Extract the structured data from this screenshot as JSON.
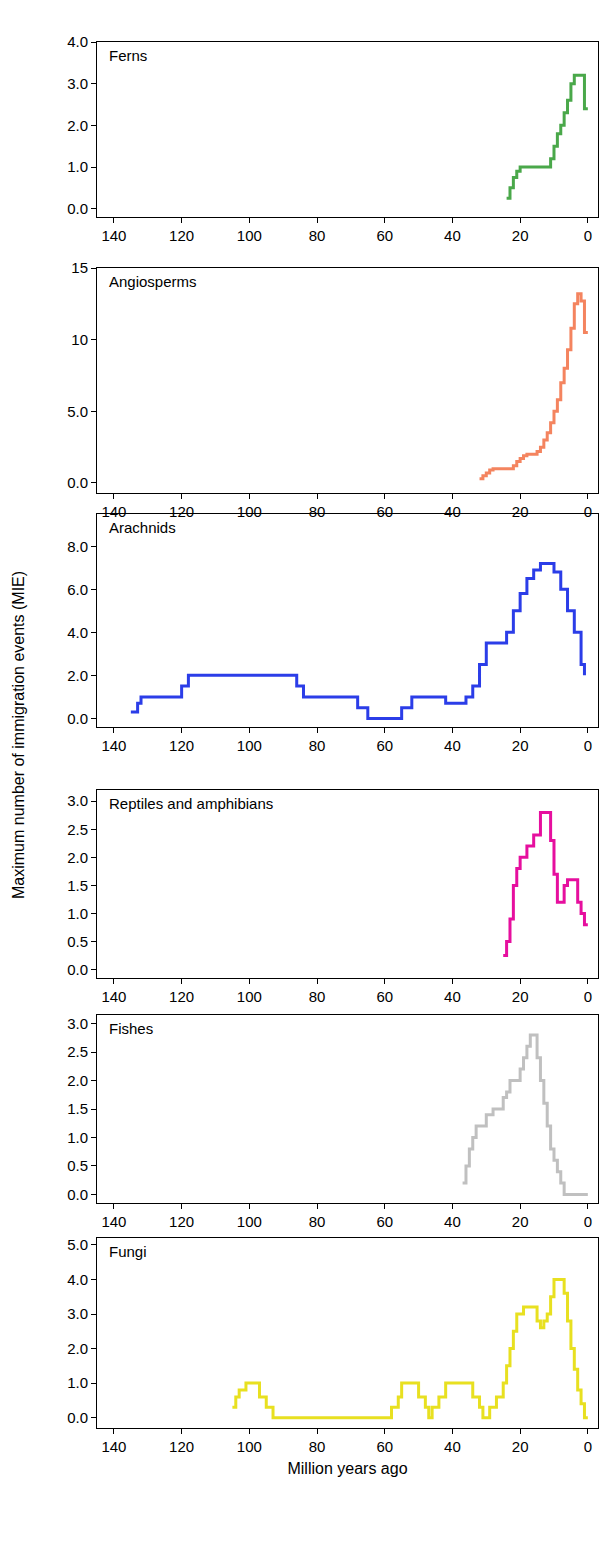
{
  "chart_data": [
    {
      "type": "line",
      "title": "Ferns",
      "color": "#4aa84a",
      "line_style": "step",
      "x": [
        24,
        23,
        22,
        21,
        20,
        12,
        11,
        10,
        9,
        8,
        7,
        6,
        5,
        4,
        2,
        1,
        0
      ],
      "values": [
        0.25,
        0.5,
        0.75,
        0.9,
        1.0,
        1.0,
        1.2,
        1.5,
        1.8,
        2.0,
        2.3,
        2.6,
        3.0,
        3.2,
        3.2,
        2.4,
        2.4
      ],
      "xlim": [
        145,
        -3
      ],
      "xticks": [
        140,
        120,
        100,
        80,
        60,
        40,
        20,
        0
      ],
      "ylim": [
        -0.2,
        4.0
      ],
      "yticks": [
        {
          "value": 0,
          "label": "0.0"
        },
        {
          "value": 1,
          "label": "1.0"
        },
        {
          "value": 2,
          "label": "2.0"
        },
        {
          "value": 3,
          "label": "3.0"
        },
        {
          "value": 4,
          "label": "4.0"
        }
      ]
    },
    {
      "type": "line",
      "title": "Angiosperms",
      "color": "#f4845f",
      "line_style": "step",
      "x": [
        32,
        31,
        30,
        29,
        28,
        23,
        22,
        21,
        20,
        19,
        18,
        16,
        15,
        14,
        13,
        12,
        11,
        10,
        9,
        8,
        7,
        6,
        5,
        4,
        3,
        2,
        1,
        0
      ],
      "values": [
        0.3,
        0.5,
        0.7,
        0.9,
        1.0,
        1.0,
        1.2,
        1.5,
        1.7,
        1.9,
        2.0,
        2.0,
        2.2,
        2.5,
        3.0,
        3.5,
        4.2,
        5.0,
        5.8,
        7.0,
        8.0,
        9.3,
        10.8,
        12.5,
        13.2,
        12.7,
        10.5,
        10.5
      ],
      "xlim": [
        145,
        -3
      ],
      "xticks": [
        140,
        120,
        100,
        80,
        60,
        40,
        20,
        0
      ],
      "ylim": [
        -0.7,
        15
      ],
      "yticks": [
        {
          "value": 0,
          "label": "0.0"
        },
        {
          "value": 5,
          "label": "5.0"
        },
        10,
        15
      ]
    },
    {
      "type": "line",
      "title": "Arachnids",
      "color": "#2b3de8",
      "line_style": "step",
      "x": [
        135,
        133,
        132,
        123,
        120,
        118,
        88,
        86,
        84,
        70,
        68,
        65,
        58,
        55,
        52,
        43,
        42,
        38,
        36,
        34,
        32,
        30,
        26,
        24,
        22,
        20,
        18,
        16,
        14,
        12,
        10,
        8,
        6,
        4,
        2,
        1
      ],
      "values": [
        0.3,
        0.7,
        1.0,
        1.0,
        1.5,
        2.0,
        2.0,
        1.5,
        1.0,
        1.0,
        0.5,
        0.0,
        0.0,
        0.5,
        1.0,
        1.0,
        0.7,
        0.7,
        1.0,
        1.5,
        2.5,
        3.5,
        3.5,
        4.0,
        5.0,
        5.8,
        6.5,
        6.9,
        7.2,
        7.2,
        6.8,
        6.0,
        5.0,
        4.0,
        2.5,
        2.0
      ],
      "xlim": [
        145,
        -3
      ],
      "xticks": [
        140,
        120,
        100,
        80,
        60,
        40,
        20,
        0
      ],
      "ylim": [
        -0.4,
        9.5
      ],
      "yticks": [
        {
          "value": 0,
          "label": "0.0"
        },
        {
          "value": 2,
          "label": "2.0"
        },
        {
          "value": 4,
          "label": "4.0"
        },
        {
          "value": 6,
          "label": "6.0"
        },
        {
          "value": 8,
          "label": "8.0"
        }
      ]
    },
    {
      "type": "line",
      "title": "Reptiles and amphibians",
      "color": "#e60f9e",
      "line_style": "step",
      "x": [
        25,
        24,
        23,
        22,
        21,
        20,
        18,
        16,
        14,
        12,
        11,
        10,
        9,
        8,
        7,
        6,
        4,
        3,
        2,
        1,
        0
      ],
      "values": [
        0.25,
        0.5,
        0.9,
        1.5,
        1.8,
        2.0,
        2.2,
        2.4,
        2.8,
        2.8,
        2.3,
        1.7,
        1.2,
        1.2,
        1.5,
        1.6,
        1.6,
        1.2,
        1.0,
        0.8,
        0.8
      ],
      "xlim": [
        145,
        -3
      ],
      "xticks": [
        140,
        120,
        100,
        80,
        60,
        40,
        20,
        0
      ],
      "ylim": [
        -0.15,
        3.2
      ],
      "yticks": [
        {
          "value": 0,
          "label": "0.0"
        },
        {
          "value": 0.5,
          "label": "0.5"
        },
        {
          "value": 1,
          "label": "1.0"
        },
        {
          "value": 1.5,
          "label": "1.5"
        },
        {
          "value": 2,
          "label": "2.0"
        },
        {
          "value": 2.5,
          "label": "2.5"
        },
        {
          "value": 3,
          "label": "3.0"
        }
      ]
    },
    {
      "type": "line",
      "title": "Fishes",
      "color": "#c0c0c0",
      "line_style": "step",
      "x": [
        37,
        36,
        35,
        34,
        33,
        31,
        30,
        28,
        26,
        25,
        24,
        23,
        21,
        20,
        19,
        18,
        17,
        16,
        15,
        14,
        13,
        12,
        11,
        10,
        9,
        8,
        7,
        0
      ],
      "values": [
        0.2,
        0.5,
        0.8,
        1.0,
        1.2,
        1.2,
        1.4,
        1.5,
        1.5,
        1.7,
        1.8,
        2.0,
        2.0,
        2.2,
        2.4,
        2.6,
        2.8,
        2.8,
        2.4,
        2.0,
        1.6,
        1.2,
        0.8,
        0.6,
        0.4,
        0.2,
        0.0,
        0.0
      ],
      "xlim": [
        145,
        -3
      ],
      "xticks": [
        140,
        120,
        100,
        80,
        60,
        40,
        20,
        0
      ],
      "ylim": [
        -0.15,
        3.15
      ],
      "yticks": [
        {
          "value": 0,
          "label": "0.0"
        },
        {
          "value": 0.5,
          "label": "0.5"
        },
        {
          "value": 1,
          "label": "1.0"
        },
        {
          "value": 1.5,
          "label": "1.5"
        },
        {
          "value": 2,
          "label": "2.0"
        },
        {
          "value": 2.5,
          "label": "2.5"
        },
        {
          "value": 3,
          "label": "3.0"
        }
      ]
    },
    {
      "type": "line",
      "title": "Fungi",
      "color": "#e8e020",
      "line_style": "step",
      "x": [
        105,
        104,
        103,
        101,
        98,
        97,
        95,
        93,
        60,
        58,
        56,
        55,
        52,
        50,
        48,
        47,
        46,
        44,
        42,
        36,
        34,
        32,
        31,
        29,
        27,
        25,
        24,
        23,
        22,
        21,
        19,
        17,
        15,
        14,
        13,
        12,
        11,
        10,
        8,
        7,
        6,
        5,
        4,
        3,
        2,
        1,
        0
      ],
      "values": [
        0.3,
        0.6,
        0.8,
        1.0,
        1.0,
        0.6,
        0.3,
        0.0,
        0.0,
        0.3,
        0.6,
        1.0,
        1.0,
        0.6,
        0.3,
        0.0,
        0.3,
        0.6,
        1.0,
        1.0,
        0.6,
        0.3,
        0.0,
        0.3,
        0.6,
        1.0,
        1.5,
        2.0,
        2.5,
        3.0,
        3.2,
        3.2,
        2.8,
        2.6,
        2.8,
        3.0,
        3.5,
        4.0,
        4.0,
        3.6,
        2.8,
        2.0,
        1.4,
        0.8,
        0.4,
        0.0,
        0.0
      ],
      "xlim": [
        145,
        -3
      ],
      "xticks": [
        140,
        120,
        100,
        80,
        60,
        40,
        20,
        0
      ],
      "ylim": [
        -0.3,
        5.2
      ],
      "yticks": [
        {
          "value": 0,
          "label": "0.0"
        },
        {
          "value": 1,
          "label": "1.0"
        },
        {
          "value": 2,
          "label": "2.0"
        },
        {
          "value": 3,
          "label": "3.0"
        },
        {
          "value": 4,
          "label": "4.0"
        },
        {
          "value": 5,
          "label": "5.0"
        }
      ],
      "x_label": "Million years ago"
    }
  ],
  "y_label": "Maximum number of immigration events (MIE)"
}
